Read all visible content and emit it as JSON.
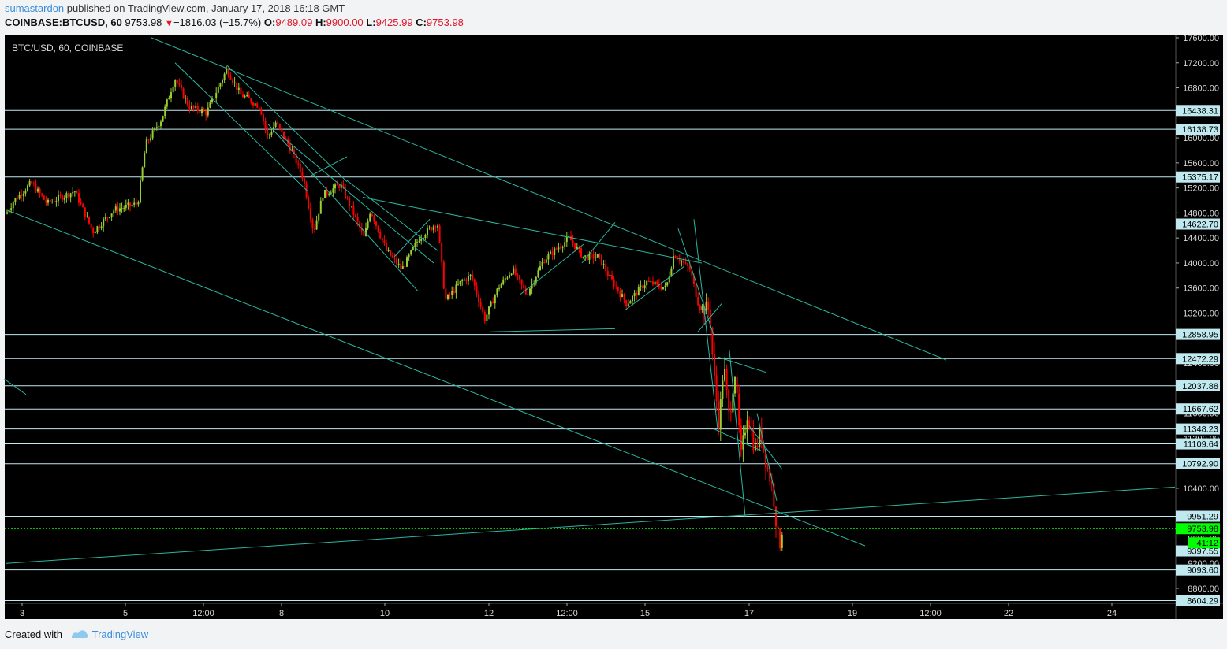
{
  "header": {
    "author": "sumastardon",
    "published_text": " published on TradingView.com, January 17, 2018 16:18 GMT",
    "symbol": "COINBASE:BTCUSD, 60",
    "last": "9753.98",
    "change_arrow": "▼",
    "change": "−1816.03 (−15.7%)",
    "o_label": "O:",
    "o_value": "9489.09",
    "h_label": "H:",
    "h_value": "9900.00",
    "l_label": "L:",
    "l_value": "9425.99",
    "c_label": "C:",
    "c_value": "9753.98"
  },
  "footer": {
    "created_with": "Created with",
    "brand": "TradingView"
  },
  "colors": {
    "background": "#000000",
    "up": "#9acd32",
    "down": "#ff0000",
    "line": "#2bb5a0",
    "hline": "#bfe8ef",
    "label_bg": "#bfe8ef",
    "last_price": "#00ff00"
  },
  "chart_data": {
    "type": "candlestick",
    "title": "BTC/USD, 60, COINBASE",
    "ylim": [
      8500,
      17700
    ],
    "y_ticks": [
      "17600.00",
      "17200.00",
      "16800.00",
      "16000.00",
      "15600.00",
      "15200.00",
      "14800.00",
      "14400.00",
      "14000.00",
      "13600.00",
      "13200.00",
      "10400.00",
      "8800.00"
    ],
    "x_ticks": [
      "3",
      "5",
      "12:00",
      "8",
      "10",
      "12",
      "12:00",
      "15",
      "17",
      "19",
      "12:00",
      "22",
      "24"
    ],
    "horizontal_levels": [
      16438.31,
      16138.73,
      15375.17,
      14622.7,
      12858.95,
      12472.29,
      12037.88,
      11667.62,
      11348.23,
      11109.64,
      10792.9,
      9951.29,
      9397.55,
      9093.6,
      8604.29
    ],
    "last_price": 9753.98,
    "countdown_label": "41:12",
    "hidden_tick_fragments": [
      "12400.00",
      "11600.00",
      "11200.00",
      "9600.00",
      "9200.00"
    ],
    "anchors": [
      {
        "x": 0,
        "p": 13750
      },
      {
        "x": 4,
        "p": 14700
      },
      {
        "x": 18,
        "p": 15000
      },
      {
        "x": 40,
        "p": 15280
      },
      {
        "x": 60,
        "p": 14950
      },
      {
        "x": 95,
        "p": 15150
      },
      {
        "x": 118,
        "p": 14500
      },
      {
        "x": 145,
        "p": 14850
      },
      {
        "x": 175,
        "p": 14950
      },
      {
        "x": 185,
        "p": 15900
      },
      {
        "x": 205,
        "p": 16300
      },
      {
        "x": 222,
        "p": 16950
      },
      {
        "x": 240,
        "p": 16500
      },
      {
        "x": 262,
        "p": 16400
      },
      {
        "x": 288,
        "p": 17100
      },
      {
        "x": 305,
        "p": 16700
      },
      {
        "x": 330,
        "p": 16500
      },
      {
        "x": 340,
        "p": 16000
      },
      {
        "x": 350,
        "p": 16250
      },
      {
        "x": 370,
        "p": 15800
      },
      {
        "x": 385,
        "p": 15350
      },
      {
        "x": 398,
        "p": 14500
      },
      {
        "x": 410,
        "p": 15100
      },
      {
        "x": 432,
        "p": 15250
      },
      {
        "x": 445,
        "p": 14900
      },
      {
        "x": 462,
        "p": 14400
      },
      {
        "x": 470,
        "p": 14850
      },
      {
        "x": 490,
        "p": 14200
      },
      {
        "x": 510,
        "p": 13900
      },
      {
        "x": 532,
        "p": 14400
      },
      {
        "x": 555,
        "p": 14650
      },
      {
        "x": 565,
        "p": 13400
      },
      {
        "x": 585,
        "p": 13700
      },
      {
        "x": 598,
        "p": 13800
      },
      {
        "x": 615,
        "p": 13100
      },
      {
        "x": 632,
        "p": 13600
      },
      {
        "x": 650,
        "p": 13900
      },
      {
        "x": 668,
        "p": 13500
      },
      {
        "x": 690,
        "p": 14050
      },
      {
        "x": 722,
        "p": 14400
      },
      {
        "x": 740,
        "p": 14100
      },
      {
        "x": 760,
        "p": 14100
      },
      {
        "x": 772,
        "p": 13800
      },
      {
        "x": 795,
        "p": 13350
      },
      {
        "x": 820,
        "p": 13700
      },
      {
        "x": 845,
        "p": 13600
      },
      {
        "x": 855,
        "p": 14150
      },
      {
        "x": 875,
        "p": 13900
      },
      {
        "x": 887,
        "p": 13300
      },
      {
        "x": 900,
        "p": 13250
      },
      {
        "x": 905,
        "p": 12300
      },
      {
        "x": 912,
        "p": 11400
      },
      {
        "x": 918,
        "p": 12400
      },
      {
        "x": 925,
        "p": 11500
      },
      {
        "x": 932,
        "p": 12300
      },
      {
        "x": 940,
        "p": 10900
      },
      {
        "x": 948,
        "p": 11600
      },
      {
        "x": 958,
        "p": 11000
      },
      {
        "x": 965,
        "p": 11300
      },
      {
        "x": 972,
        "p": 10800
      },
      {
        "x": 980,
        "p": 10400
      },
      {
        "x": 986,
        "p": 9700
      },
      {
        "x": 989,
        "p": 9480
      },
      {
        "x": 992,
        "p": 9750
      }
    ],
    "trendlines": [
      {
        "p1": {
          "x": 192,
          "p": 17600
        },
        "p2": {
          "x": 1200,
          "p": 12450
        }
      },
      {
        "p1": {
          "x": 8,
          "p": 14850
        },
        "p2": {
          "x": 1097,
          "p": 9480
        }
      },
      {
        "p1": {
          "x": 8,
          "p": 9200
        },
        "p2": {
          "x": 1490,
          "p": 10420
        }
      },
      {
        "p1": {
          "x": 5,
          "p": 12150
        },
        "p2": {
          "x": 33,
          "p": 11900
        }
      },
      {
        "p1": {
          "x": 222,
          "p": 17200
        },
        "p2": {
          "x": 390,
          "p": 15150
        }
      },
      {
        "p1": {
          "x": 287,
          "p": 17170
        },
        "p2": {
          "x": 440,
          "p": 15300
        }
      },
      {
        "p1": {
          "x": 340,
          "p": 16220
        },
        "p2": {
          "x": 530,
          "p": 13550
        }
      },
      {
        "p1": {
          "x": 355,
          "p": 16050
        },
        "p2": {
          "x": 550,
          "p": 14000
        }
      },
      {
        "p1": {
          "x": 440,
          "p": 15320
        },
        "p2": {
          "x": 555,
          "p": 14200
        }
      },
      {
        "p1": {
          "x": 460,
          "p": 15050
        },
        "p2": {
          "x": 890,
          "p": 14000
        }
      },
      {
        "p1": {
          "x": 620,
          "p": 12900
        },
        "p2": {
          "x": 780,
          "p": 12950
        }
      },
      {
        "p1": {
          "x": 660,
          "p": 13500
        },
        "p2": {
          "x": 740,
          "p": 14300
        }
      },
      {
        "p1": {
          "x": 738,
          "p": 14000
        },
        "p2": {
          "x": 780,
          "p": 14650
        }
      },
      {
        "p1": {
          "x": 793,
          "p": 13250
        },
        "p2": {
          "x": 868,
          "p": 13950
        }
      },
      {
        "p1": {
          "x": 860,
          "p": 14550
        },
        "p2": {
          "x": 905,
          "p": 12850
        }
      },
      {
        "p1": {
          "x": 880,
          "p": 14700
        },
        "p2": {
          "x": 910,
          "p": 11350
        }
      },
      {
        "p1": {
          "x": 885,
          "p": 12900
        },
        "p2": {
          "x": 915,
          "p": 13350
        }
      },
      {
        "p1": {
          "x": 910,
          "p": 12500
        },
        "p2": {
          "x": 972,
          "p": 12250
        }
      },
      {
        "p1": {
          "x": 905,
          "p": 11350
        },
        "p2": {
          "x": 965,
          "p": 11000
        }
      },
      {
        "p1": {
          "x": 925,
          "p": 12600
        },
        "p2": {
          "x": 945,
          "p": 9950
        }
      },
      {
        "p1": {
          "x": 950,
          "p": 11400
        },
        "p2": {
          "x": 992,
          "p": 10700
        }
      },
      {
        "p1": {
          "x": 960,
          "p": 11600
        },
        "p2": {
          "x": 985,
          "p": 10200
        }
      },
      {
        "p1": {
          "x": 395,
          "p": 15400
        },
        "p2": {
          "x": 440,
          "p": 15700
        }
      },
      {
        "p1": {
          "x": 500,
          "p": 14100
        },
        "p2": {
          "x": 545,
          "p": 14700
        }
      }
    ]
  }
}
